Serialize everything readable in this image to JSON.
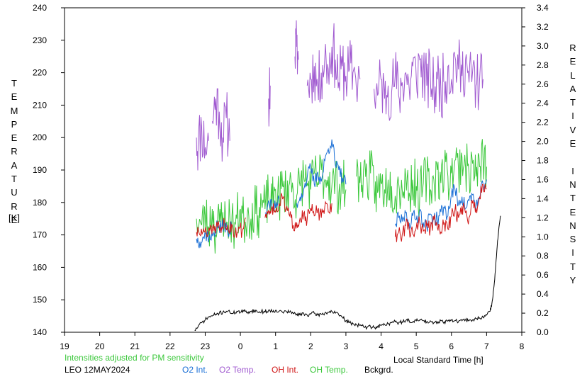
{
  "chart_data": {
    "type": "line",
    "left_axis": {
      "label_letters": [
        "T",
        "E",
        "M",
        "P",
        "E",
        "R",
        "A",
        "T",
        "U",
        "R",
        "E"
      ],
      "unit": "[K]",
      "range": [
        140,
        240
      ],
      "ticks": [
        140,
        150,
        160,
        170,
        180,
        190,
        200,
        210,
        220,
        230,
        240
      ]
    },
    "right_axis": {
      "label_letters": [
        "R",
        "E",
        "L",
        "A",
        "T",
        "I",
        "V",
        "E",
        "",
        "I",
        "N",
        "T",
        "E",
        "N",
        "S",
        "I",
        "T",
        "Y"
      ],
      "range": [
        0.0,
        3.4
      ],
      "ticks": [
        "0.0",
        "0.2",
        "0.4",
        "0.6",
        "0.8",
        "1.0",
        "1.2",
        "1.4",
        "1.6",
        "1.8",
        "2.0",
        "2.2",
        "2.4",
        "2.6",
        "2.8",
        "3.0",
        "3.2",
        "3.4"
      ]
    },
    "x_axis": {
      "label": "Local Standard Time [h]",
      "ticks": [
        "19",
        "20",
        "21",
        "22",
        "23",
        "0",
        "1",
        "2",
        "3",
        "4",
        "5",
        "6",
        "7",
        "8"
      ]
    },
    "note": "Intensities adjusted for PM sensitivity",
    "station_date": "LEO 12MAY2024",
    "legend": [
      {
        "name": "O2 Int.",
        "color": "#1a6fd6"
      },
      {
        "name": "O2 Temp.",
        "color": "#a05ad0"
      },
      {
        "name": "OH Int.",
        "color": "#d01818"
      },
      {
        "name": "OH Temp.",
        "color": "#3cc83c"
      },
      {
        "name": "Bckgrd.",
        "color": "#000000"
      }
    ],
    "series": [
      {
        "name": "O2 Temp.",
        "axis": "left",
        "color": "#a05ad0",
        "noise": 10,
        "seed": 11,
        "segments": [
          {
            "x": [
              -1.25,
              -1.2,
              -1.1,
              -1.0,
              -0.9
            ],
            "y": [
              200,
              198,
              203,
              197,
              199
            ]
          },
          {
            "x": [
              -0.8,
              -0.7,
              -0.6,
              -0.5,
              -0.4,
              -0.3
            ],
            "y": [
              205,
              212,
              208,
              200,
              206,
              199
            ]
          },
          {
            "x": [
              0.8,
              0.85
            ],
            "y": [
              212,
              216
            ]
          },
          {
            "x": [
              1.55,
              1.6,
              1.65
            ],
            "y": [
              225,
              228,
              224
            ]
          },
          {
            "x": [
              1.9,
              2.0,
              2.1,
              2.2,
              2.3,
              2.4,
              2.5,
              2.6,
              2.7,
              2.8,
              2.9,
              3.0,
              3.1,
              3.2,
              3.4
            ],
            "y": [
              216,
              218,
              222,
              215,
              220,
              225,
              221,
              228,
              224,
              217,
              222,
              219,
              221,
              220,
              218
            ]
          },
          {
            "x": [
              3.8,
              3.9,
              4.0,
              4.1,
              4.2,
              4.3,
              4.4,
              4.5,
              4.6,
              4.7,
              4.8,
              4.9,
              5.0,
              5.1,
              5.2,
              5.3,
              5.4,
              5.5,
              5.6,
              5.7,
              5.8,
              5.9,
              6.0,
              6.1,
              6.2,
              6.3,
              6.4,
              6.5,
              6.6,
              6.7,
              6.8,
              6.9
            ],
            "y": [
              215,
              213,
              218,
              212,
              216,
              214,
              219,
              213,
              217,
              220,
              215,
              222,
              218,
              224,
              220,
              216,
              219,
              214,
              218,
              215,
              217,
              222,
              218,
              225,
              221,
              219,
              224,
              217,
              220,
              216,
              218,
              218
            ]
          }
        ]
      },
      {
        "name": "OH Temp.",
        "axis": "left",
        "color": "#3cc83c",
        "noise": 8,
        "seed": 23,
        "segments": [
          {
            "x": [
              -1.25,
              -1.1,
              -1.0,
              -0.9,
              -0.8,
              -0.7,
              -0.6,
              -0.5,
              -0.4,
              -0.3,
              -0.2,
              -0.1,
              0.0,
              0.1,
              0.2,
              0.3,
              0.4,
              0.5,
              0.6,
              0.7,
              0.8,
              0.9,
              1.0,
              1.1,
              1.2,
              1.3,
              1.4,
              1.5,
              1.6,
              1.7,
              1.8,
              1.9,
              2.0,
              2.1,
              2.2,
              2.3,
              2.4,
              2.5,
              2.6,
              2.7,
              2.8,
              2.9,
              3.0
            ],
            "y": [
              175,
              173,
              176,
              172,
              178,
              170,
              174,
              177,
              173,
              176,
              172,
              175,
              178,
              174,
              177,
              175,
              179,
              176,
              180,
              178,
              182,
              179,
              184,
              181,
              185,
              183,
              186,
              184,
              182,
              185,
              188,
              186,
              184,
              189,
              186,
              190,
              187,
              188,
              185,
              187,
              183,
              186,
              184
            ]
          },
          {
            "x": [
              3.3,
              3.4,
              3.5,
              3.6,
              3.7,
              3.8,
              3.9,
              4.0,
              4.1,
              4.2,
              4.3,
              4.4,
              4.5,
              4.6,
              4.7,
              4.8,
              4.9,
              5.0,
              5.1,
              5.2,
              5.3,
              5.4,
              5.5,
              5.6,
              5.7,
              5.8,
              5.9,
              6.0,
              6.1,
              6.2,
              6.3,
              6.4,
              6.5,
              6.6,
              6.7,
              6.8,
              6.9,
              7.0
            ],
            "y": [
              188,
              186,
              190,
              187,
              189,
              185,
              183,
              186,
              184,
              187,
              185,
              182,
              186,
              184,
              188,
              183,
              187,
              185,
              182,
              186,
              188,
              184,
              187,
              190,
              186,
              191,
              188,
              189,
              193,
              190,
              194,
              191,
              189,
              192,
              188,
              191,
              193,
              191
            ]
          }
        ]
      },
      {
        "name": "O2 Int.",
        "axis": "right",
        "color": "#1a6fd6",
        "noise": 0.08,
        "seed": 37,
        "segments": [
          {
            "x": [
              -1.25,
              -1.15,
              -1.05,
              -0.95,
              -0.85,
              -0.75,
              -0.65,
              -0.55,
              -0.45,
              -0.35,
              -0.25
            ],
            "y": [
              0.98,
              0.95,
              1.0,
              1.03,
              0.97,
              1.05,
              1.12,
              1.08,
              1.15,
              1.02,
              1.1
            ]
          },
          {
            "x": [
              0.7,
              0.8,
              0.9,
              1.0,
              1.1
            ],
            "y": [
              1.25,
              1.38,
              1.32,
              1.3,
              1.4
            ]
          },
          {
            "x": [
              1.6,
              1.7,
              1.8,
              1.9,
              2.0,
              2.1,
              2.2,
              2.3,
              2.4,
              2.5,
              2.6,
              2.7,
              2.8,
              2.9,
              3.0
            ],
            "y": [
              1.35,
              1.42,
              1.5,
              1.62,
              1.72,
              1.55,
              1.68,
              1.58,
              1.8,
              1.92,
              2.02,
              1.75,
              1.7,
              1.62,
              1.55
            ]
          },
          {
            "x": [
              4.4,
              4.5,
              4.6,
              4.7,
              4.8,
              4.9,
              5.0,
              5.1,
              5.2,
              5.3,
              5.4,
              5.5,
              5.6,
              5.7,
              5.8,
              5.9,
              6.0,
              6.1,
              6.2,
              6.3,
              6.4,
              6.5,
              6.6,
              6.7,
              6.8,
              6.9,
              7.0
            ],
            "y": [
              1.12,
              1.2,
              1.16,
              1.25,
              1.14,
              1.22,
              1.18,
              1.28,
              1.15,
              1.1,
              1.24,
              1.2,
              1.18,
              1.26,
              1.3,
              1.22,
              1.45,
              1.5,
              1.35,
              1.42,
              1.3,
              1.38,
              1.44,
              1.32,
              1.4,
              1.55,
              1.6
            ]
          }
        ]
      },
      {
        "name": "OH Int.",
        "axis": "right",
        "color": "#d01818",
        "noise": 0.08,
        "seed": 51,
        "segments": [
          {
            "x": [
              -1.25,
              -1.15,
              -1.05,
              -0.95,
              -0.85,
              -0.75,
              -0.65,
              -0.55,
              -0.45,
              -0.35,
              -0.25,
              -0.15,
              -0.05,
              0.05,
              0.15
            ],
            "y": [
              1.05,
              1.02,
              1.08,
              1.0,
              1.12,
              1.06,
              1.1,
              1.04,
              1.15,
              1.08,
              1.13,
              1.02,
              1.1,
              1.06,
              1.2
            ]
          },
          {
            "x": [
              0.7,
              0.8,
              0.9,
              1.0,
              1.1,
              1.2,
              1.3,
              1.4,
              1.5,
              1.6,
              1.7,
              1.8,
              1.9,
              2.0,
              2.1,
              2.2,
              2.3,
              2.4,
              2.5,
              2.6
            ],
            "y": [
              1.2,
              1.28,
              1.32,
              1.26,
              1.35,
              1.4,
              1.3,
              1.22,
              1.12,
              1.15,
              1.2,
              1.25,
              1.18,
              1.3,
              1.22,
              1.28,
              1.2,
              1.32,
              1.26,
              1.35
            ]
          },
          {
            "x": [
              4.4,
              4.5,
              4.6,
              4.7,
              4.8,
              4.9,
              5.0,
              5.1,
              5.2,
              5.3,
              5.4,
              5.5,
              5.6,
              5.7,
              5.8,
              5.9,
              6.0,
              6.1,
              6.2,
              6.3,
              6.4,
              6.5,
              6.6,
              6.7,
              6.8,
              6.9,
              7.0
            ],
            "y": [
              1.0,
              1.05,
              1.02,
              1.12,
              1.08,
              1.03,
              1.1,
              1.15,
              1.06,
              1.12,
              1.08,
              1.18,
              1.1,
              1.05,
              1.15,
              1.08,
              1.22,
              1.28,
              1.2,
              1.32,
              1.25,
              1.2,
              1.35,
              1.3,
              1.42,
              1.55,
              1.5
            ]
          }
        ]
      },
      {
        "name": "Bckgrd.",
        "axis": "right",
        "color": "#000000",
        "noise": 0.02,
        "seed": 71,
        "segments": [
          {
            "x": [
              -1.3,
              -1.2,
              -1.1,
              -1.0,
              -0.9,
              -0.8,
              -0.7,
              -0.6,
              -0.5,
              -0.4,
              -0.3,
              -0.2,
              -0.1,
              0.0,
              0.1,
              0.2,
              0.3,
              0.4,
              0.5,
              0.6,
              0.7,
              0.8,
              0.9,
              1.0,
              1.1,
              1.2,
              1.3,
              1.4,
              1.5,
              1.6,
              1.7,
              1.8,
              1.9,
              2.0,
              2.1,
              2.2,
              2.3,
              2.4,
              2.5,
              2.6,
              2.7,
              2.8,
              2.9,
              3.0,
              3.1,
              3.2,
              3.3,
              3.4,
              3.5,
              3.6,
              3.7,
              3.8,
              3.9,
              4.0,
              4.1,
              4.2,
              4.3,
              4.4,
              4.5,
              4.6,
              4.7,
              4.8,
              4.9,
              5.0,
              5.1,
              5.2,
              5.3,
              5.4,
              5.5,
              5.6,
              5.7,
              5.8,
              5.9,
              6.0,
              6.1,
              6.2,
              6.3,
              6.4,
              6.5,
              6.6,
              6.7,
              6.8,
              6.9,
              7.0,
              7.1,
              7.15,
              7.2,
              7.25,
              7.3,
              7.35,
              7.4
            ],
            "y": [
              0.02,
              0.06,
              0.1,
              0.13,
              0.16,
              0.17,
              0.19,
              0.2,
              0.21,
              0.22,
              0.21,
              0.2,
              0.22,
              0.21,
              0.22,
              0.21,
              0.22,
              0.23,
              0.21,
              0.22,
              0.21,
              0.23,
              0.22,
              0.23,
              0.22,
              0.21,
              0.22,
              0.21,
              0.2,
              0.19,
              0.18,
              0.2,
              0.18,
              0.19,
              0.2,
              0.18,
              0.19,
              0.2,
              0.21,
              0.22,
              0.2,
              0.18,
              0.16,
              0.12,
              0.1,
              0.09,
              0.08,
              0.07,
              0.06,
              0.05,
              0.06,
              0.05,
              0.06,
              0.07,
              0.08,
              0.09,
              0.1,
              0.11,
              0.1,
              0.11,
              0.12,
              0.12,
              0.11,
              0.12,
              0.13,
              0.12,
              0.11,
              0.12,
              0.1,
              0.11,
              0.12,
              0.11,
              0.12,
              0.13,
              0.12,
              0.11,
              0.12,
              0.13,
              0.12,
              0.13,
              0.14,
              0.15,
              0.16,
              0.18,
              0.22,
              0.3,
              0.45,
              0.65,
              0.9,
              1.1,
              1.22
            ]
          }
        ]
      }
    ]
  }
}
